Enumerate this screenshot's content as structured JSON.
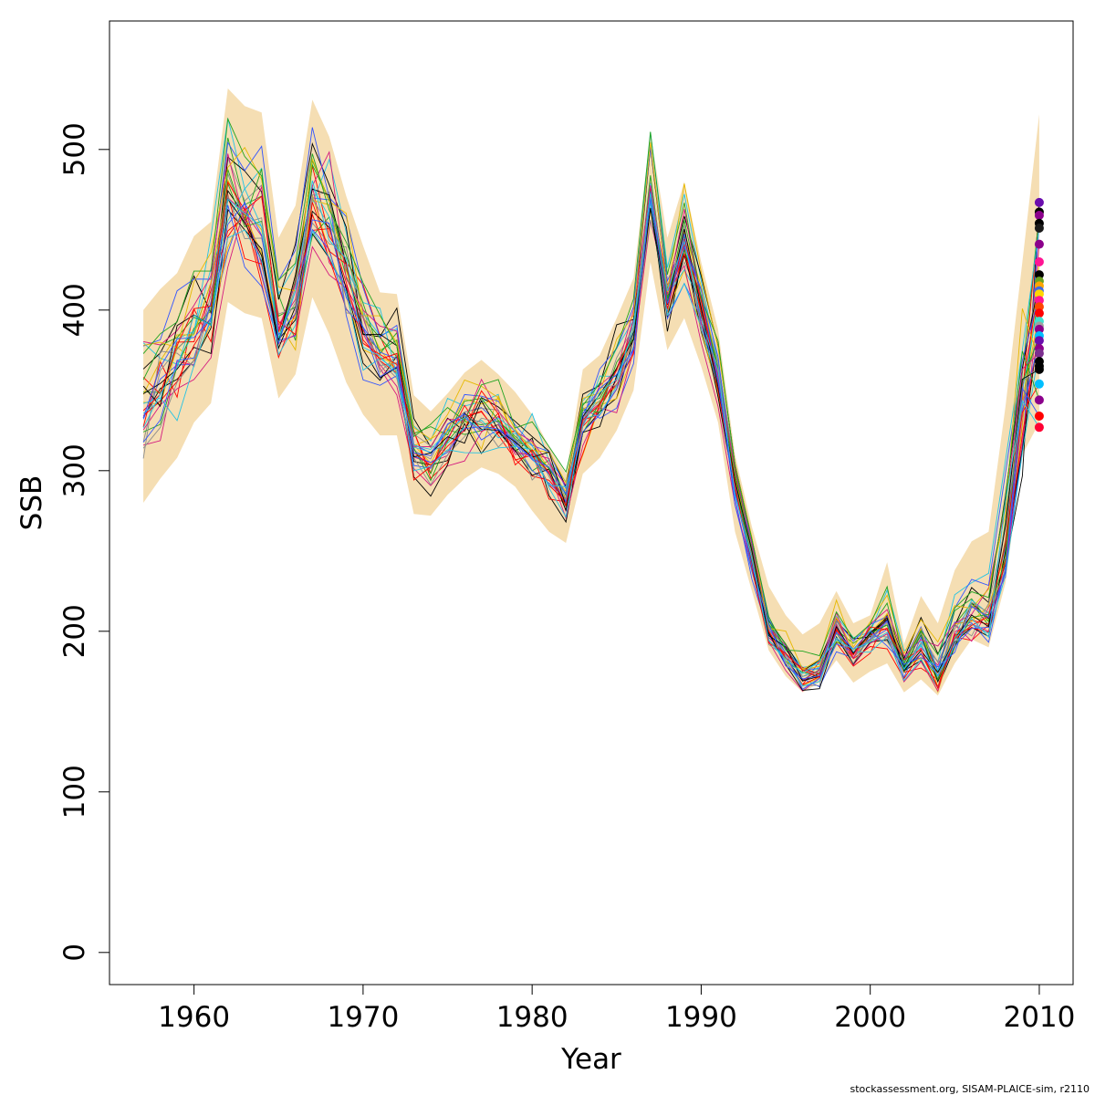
{
  "chart_data": {
    "type": "line",
    "xlabel": "Year",
    "ylabel": "SSB",
    "xlim": [
      1955,
      2012
    ],
    "ylim": [
      -20,
      580
    ],
    "x_ticks": [
      1960,
      1970,
      1980,
      1990,
      2000,
      2010
    ],
    "y_ticks": [
      0,
      100,
      200,
      300,
      400,
      500
    ],
    "grid": false,
    "legend": "none",
    "band_color": "#F5DEB3",
    "footer": "stockassessment.org, SISAM-PLAICE-sim, r2110",
    "x": [
      1957,
      1958,
      1959,
      1960,
      1961,
      1962,
      1963,
      1964,
      1965,
      1966,
      1967,
      1968,
      1969,
      1970,
      1971,
      1972,
      1973,
      1974,
      1975,
      1976,
      1977,
      1978,
      1979,
      1980,
      1981,
      1982,
      1983,
      1984,
      1985,
      1986,
      1987,
      1988,
      1989,
      1990,
      1991,
      1992,
      1993,
      1994,
      1995,
      1996,
      1997,
      1998,
      1999,
      2000,
      2001,
      2002,
      2003,
      2004,
      2005,
      2006,
      2007,
      2008,
      2009,
      2010
    ],
    "median": [
      340,
      352,
      368,
      385,
      395,
      470,
      462,
      455,
      390,
      408,
      470,
      455,
      420,
      390,
      372,
      368,
      310,
      308,
      318,
      330,
      335,
      332,
      318,
      310,
      298,
      282,
      330,
      340,
      360,
      385,
      475,
      405,
      445,
      400,
      360,
      290,
      245,
      200,
      185,
      172,
      175,
      200,
      185,
      195,
      205,
      178,
      192,
      175,
      198,
      210,
      212,
      260,
      350,
      400
    ],
    "band_lower": [
      280,
      295,
      308,
      330,
      342,
      405,
      398,
      395,
      345,
      360,
      408,
      385,
      355,
      335,
      322,
      322,
      273,
      272,
      285,
      295,
      302,
      298,
      290,
      275,
      262,
      255,
      298,
      308,
      325,
      350,
      430,
      375,
      395,
      365,
      330,
      262,
      225,
      188,
      172,
      162,
      168,
      182,
      168,
      175,
      180,
      162,
      170,
      160,
      180,
      195,
      190,
      230,
      310,
      330
    ],
    "band_upper": [
      400,
      413,
      423,
      446,
      455,
      538,
      527,
      523,
      445,
      465,
      531,
      508,
      471,
      440,
      411,
      410,
      347,
      337,
      348,
      361,
      369,
      360,
      349,
      335,
      315,
      298,
      363,
      372,
      395,
      420,
      510,
      445,
      480,
      430,
      388,
      310,
      265,
      228,
      210,
      198,
      205,
      225,
      205,
      210,
      243,
      192,
      222,
      205,
      238,
      256,
      262,
      340,
      430,
      522
    ],
    "endpoint_values": [
      467,
      461,
      459,
      454,
      451,
      441,
      430,
      422,
      418,
      415,
      412,
      410,
      406,
      402,
      398,
      393,
      390,
      388,
      384,
      381,
      376,
      373,
      368,
      365,
      363,
      354,
      344,
      334,
      327
    ],
    "endpoint_colors": [
      "#6A0DAD",
      "#000000",
      "#8B008B",
      "#000000",
      "#1A1A1A",
      "#8B008B",
      "#FF1493",
      "#000000",
      "#6AA121",
      "#FFA500",
      "#4169E1",
      "#FFD700",
      "#FF1493",
      "#FF4500",
      "#FF0000",
      "#40E0D0",
      "#A0A0A0",
      "#8B008B",
      "#00BFFF",
      "#6A0DAD",
      "#8B008B",
      "#7B2F8F",
      "#000000",
      "#000000",
      "#000000",
      "#00BFFF",
      "#8B008B",
      "#FF0000",
      "#FF0033"
    ],
    "series_palette": [
      "#000000",
      "#FF0000",
      "#1FA31F",
      "#3355FF",
      "#22C3E6",
      "#D4187F",
      "#E6B800",
      "#8C8C8C"
    ]
  }
}
